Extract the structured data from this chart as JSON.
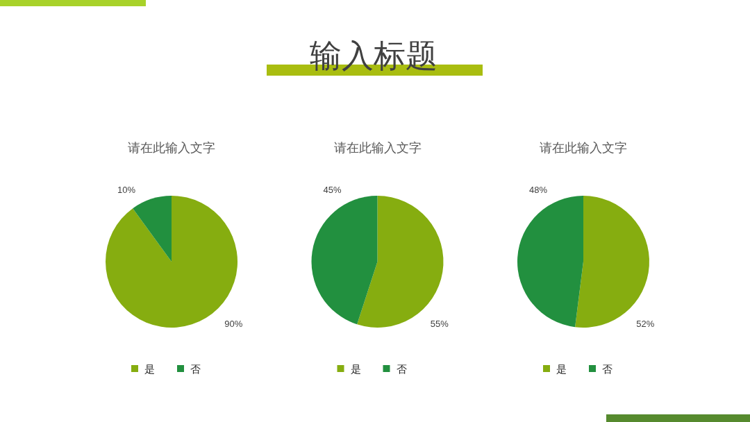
{
  "chart_data": [
    {
      "type": "other",
      "title": "输入标题"
    },
    {
      "type": "pie",
      "title": "请在此输入文字",
      "categories": [
        "是",
        "否"
      ],
      "values": [
        90,
        10
      ],
      "colors": [
        "#86ad10",
        "#22903f"
      ],
      "value_labels": [
        "90%",
        "10%"
      ],
      "legend": "bottom"
    },
    {
      "type": "pie",
      "title": "请在此输入文字",
      "categories": [
        "是",
        "否"
      ],
      "values": [
        55,
        45
      ],
      "colors": [
        "#86ad10",
        "#22903f"
      ],
      "value_labels": [
        "55%",
        "45%"
      ],
      "legend": "bottom"
    },
    {
      "type": "pie",
      "title": "请在此输入文字",
      "categories": [
        "是",
        "否"
      ],
      "values": [
        52,
        48
      ],
      "colors": [
        "#86ad10",
        "#22903f"
      ],
      "value_labels": [
        "52%",
        "48%"
      ],
      "legend": "bottom"
    }
  ]
}
